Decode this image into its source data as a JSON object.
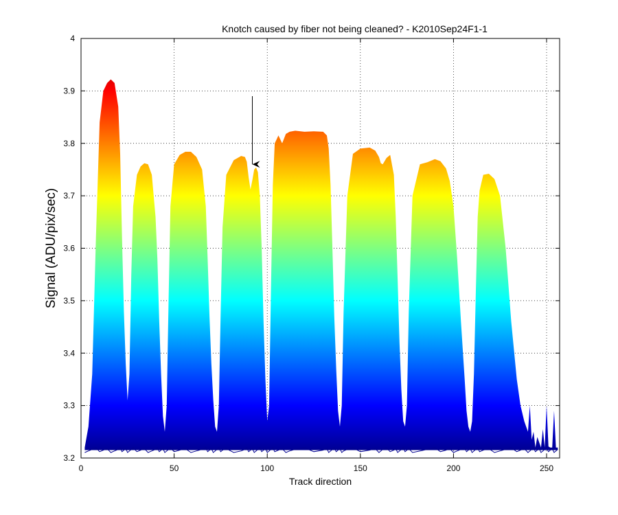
{
  "chart_data": {
    "type": "area",
    "title": "Knotch caused by fiber not being cleaned? - K2010Sep24F1-1",
    "xlabel": "Track direction",
    "ylabel": "Signal (ADU/pix/sec)",
    "xlim": [
      0,
      257
    ],
    "ylim": [
      3.2,
      4.0
    ],
    "xticks": [
      0,
      50,
      100,
      150,
      200,
      250
    ],
    "yticks": [
      3.2,
      3.3,
      3.4,
      3.5,
      3.6,
      3.7,
      3.8,
      3.9,
      4.0
    ],
    "grid": true,
    "colormap": "jet",
    "colors": {
      "outline": "#00008f",
      "annotation_arrow": "#000000"
    },
    "baseline": 3.215,
    "upper_envelope": {
      "x": [
        2,
        4,
        6,
        8,
        10,
        12,
        14,
        16,
        18,
        20,
        21,
        22,
        23,
        24,
        25,
        26,
        27,
        28,
        30,
        32,
        34,
        36,
        38,
        40,
        41,
        42,
        43,
        44,
        45,
        46,
        47,
        48,
        50,
        53,
        56,
        59,
        62,
        65,
        67,
        68,
        69,
        70,
        71,
        72,
        73,
        74,
        75,
        76,
        78,
        82,
        86,
        88,
        89,
        90,
        91,
        92,
        93,
        94,
        95,
        96,
        97,
        98,
        99,
        100,
        101,
        102,
        103,
        104,
        106,
        108,
        110,
        112,
        115,
        120,
        125,
        130,
        132,
        133,
        134,
        135,
        136,
        137,
        138,
        139,
        140,
        141,
        143,
        146,
        150,
        155,
        158,
        160,
        161,
        162,
        164,
        166,
        168,
        169,
        170,
        171,
        172,
        173,
        174,
        175,
        176,
        178,
        182,
        186,
        190,
        193,
        196,
        198,
        200,
        202,
        204,
        206,
        207,
        208,
        209,
        210,
        211,
        212,
        213,
        214,
        216,
        219,
        222,
        225,
        228,
        231,
        234,
        236,
        238,
        240,
        241,
        242,
        243,
        244,
        245,
        246,
        247,
        248,
        249,
        250,
        251,
        252,
        253,
        254,
        255,
        256
      ],
      "y": [
        3.22,
        3.26,
        3.36,
        3.62,
        3.84,
        3.9,
        3.915,
        3.922,
        3.915,
        3.87,
        3.78,
        3.62,
        3.48,
        3.38,
        3.31,
        3.36,
        3.55,
        3.68,
        3.74,
        3.756,
        3.762,
        3.76,
        3.74,
        3.66,
        3.58,
        3.46,
        3.36,
        3.28,
        3.25,
        3.3,
        3.5,
        3.68,
        3.76,
        3.778,
        3.784,
        3.784,
        3.774,
        3.75,
        3.68,
        3.58,
        3.47,
        3.38,
        3.31,
        3.26,
        3.25,
        3.3,
        3.48,
        3.64,
        3.74,
        3.768,
        3.776,
        3.774,
        3.765,
        3.735,
        3.712,
        3.73,
        3.75,
        3.754,
        3.745,
        3.7,
        3.6,
        3.46,
        3.35,
        3.27,
        3.3,
        3.52,
        3.72,
        3.8,
        3.815,
        3.8,
        3.818,
        3.822,
        3.824,
        3.822,
        3.823,
        3.822,
        3.815,
        3.79,
        3.72,
        3.6,
        3.47,
        3.37,
        3.29,
        3.26,
        3.3,
        3.48,
        3.7,
        3.78,
        3.79,
        3.792,
        3.786,
        3.774,
        3.762,
        3.76,
        3.772,
        3.778,
        3.74,
        3.66,
        3.54,
        3.42,
        3.33,
        3.27,
        3.26,
        3.3,
        3.48,
        3.7,
        3.76,
        3.764,
        3.77,
        3.766,
        3.752,
        3.728,
        3.68,
        3.58,
        3.46,
        3.35,
        3.29,
        3.26,
        3.25,
        3.27,
        3.36,
        3.52,
        3.66,
        3.71,
        3.74,
        3.742,
        3.732,
        3.7,
        3.6,
        3.46,
        3.35,
        3.3,
        3.27,
        3.25,
        3.3,
        3.235,
        3.25,
        3.22,
        3.24,
        3.23,
        3.22,
        3.255,
        3.22,
        3.3,
        3.222,
        3.22,
        3.22,
        3.29,
        3.22,
        3.22
      ]
    },
    "annotations": [
      {
        "type": "arrow",
        "from": [
          92,
          3.89
        ],
        "to": [
          92,
          3.76
        ]
      }
    ]
  }
}
